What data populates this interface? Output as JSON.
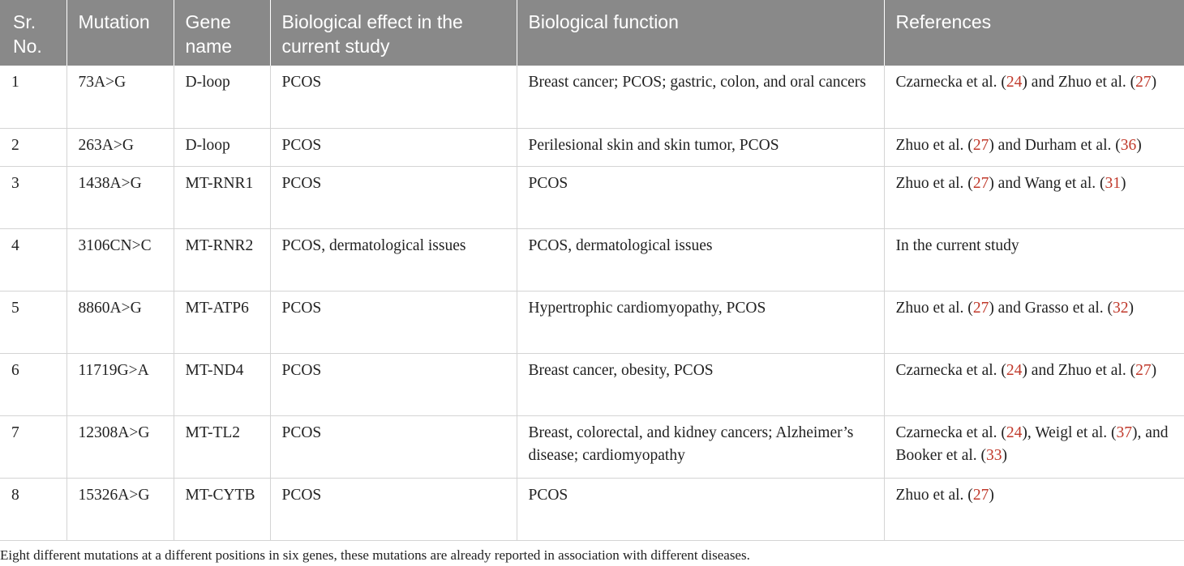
{
  "table": {
    "headers": [
      "Sr. No.",
      "Mutation",
      "Gene name",
      "Biological effect in the current study",
      "Biological function",
      "References"
    ],
    "rows": [
      {
        "sr": "1",
        "mutation": "73A>G",
        "gene": "D-loop",
        "effect": "PCOS",
        "function": "Breast cancer; PCOS; gastric, colon, and oral cancers",
        "refs": [
          {
            "t": "Czarnecka et al. ("
          },
          {
            "t": "24",
            "r": true
          },
          {
            "t": ") and Zhuo et al. ("
          },
          {
            "t": "27",
            "r": true
          },
          {
            "t": ")"
          }
        ]
      },
      {
        "sr": "2",
        "mutation": "263A>G",
        "gene": "D-loop",
        "effect": "PCOS",
        "function": "Perilesional skin and skin tumor, PCOS",
        "refs": [
          {
            "t": "Zhuo et al. ("
          },
          {
            "t": "27",
            "r": true
          },
          {
            "t": ") and Durham et al. ("
          },
          {
            "t": "36",
            "r": true
          },
          {
            "t": ")"
          }
        ]
      },
      {
        "sr": "3",
        "mutation": "1438A>G",
        "gene": "MT-RNR1",
        "effect": "PCOS",
        "function": "PCOS",
        "refs": [
          {
            "t": "Zhuo et al. ("
          },
          {
            "t": "27",
            "r": true
          },
          {
            "t": ") and Wang et al. ("
          },
          {
            "t": "31",
            "r": true
          },
          {
            "t": ")"
          }
        ]
      },
      {
        "sr": "4",
        "mutation": "3106CN>C",
        "gene": "MT-RNR2",
        "effect": "PCOS, dermatological issues",
        "function": "PCOS, dermatological issues",
        "refs": [
          {
            "t": "In the current study"
          }
        ]
      },
      {
        "sr": "5",
        "mutation": "8860A>G",
        "gene": "MT-ATP6",
        "effect": "PCOS",
        "function": "Hypertrophic cardiomyopathy, PCOS",
        "refs": [
          {
            "t": "Zhuo et al. ("
          },
          {
            "t": "27",
            "r": true
          },
          {
            "t": ") and Grasso et al. ("
          },
          {
            "t": "32",
            "r": true
          },
          {
            "t": ")"
          }
        ]
      },
      {
        "sr": "6",
        "mutation": "11719G>A",
        "gene": "MT-ND4",
        "effect": "PCOS",
        "function": "Breast cancer, obesity, PCOS",
        "refs": [
          {
            "t": "Czarnecka et al. ("
          },
          {
            "t": "24",
            "r": true
          },
          {
            "t": ") and Zhuo et al. ("
          },
          {
            "t": "27",
            "r": true
          },
          {
            "t": ")"
          }
        ]
      },
      {
        "sr": "7",
        "mutation": "12308A>G",
        "gene": "MT-TL2",
        "effect": "PCOS",
        "function": "Breast, colorectal, and kidney cancers; Alzheimer’s disease; cardiomyopathy",
        "refs": [
          {
            "t": "Czarnecka et al. ("
          },
          {
            "t": "24",
            "r": true
          },
          {
            "t": "), Weigl et al. ("
          },
          {
            "t": "37",
            "r": true
          },
          {
            "t": "), and Booker et al. ("
          },
          {
            "t": "33",
            "r": true
          },
          {
            "t": ")"
          }
        ]
      },
      {
        "sr": "8",
        "mutation": "15326A>G",
        "gene": "MT-CYTB",
        "effect": "PCOS",
        "function": "PCOS",
        "refs": [
          {
            "t": "Zhuo et al. ("
          },
          {
            "t": "27",
            "r": true
          },
          {
            "t": ")"
          }
        ]
      }
    ]
  },
  "footnote": "Eight different mutations at a different positions in six genes, these mutations are already reported in association with different diseases.",
  "colors": {
    "header_bg": "#898989",
    "header_text": "#ffffff",
    "ref_link": "#c0392b",
    "border": "#d4d4d4"
  }
}
